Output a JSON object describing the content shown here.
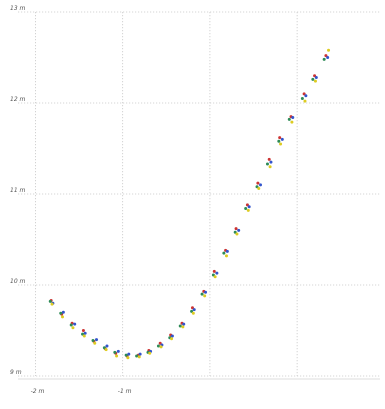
{
  "chart_data": {
    "type": "scatter",
    "title": "",
    "xlabel": "",
    "ylabel": "",
    "x_ticks": [
      {
        "value": -2,
        "label": "-2 m"
      },
      {
        "value": -1,
        "label": "-1 m"
      },
      {
        "value": 0,
        "label": ""
      },
      {
        "value": 1,
        "label": ""
      }
    ],
    "y_ticks": [
      {
        "value": 9.0,
        "label": "9 m"
      },
      {
        "value": 10.0,
        "label": "10 m"
      },
      {
        "value": 11.0,
        "label": "11 m"
      },
      {
        "value": 12.0,
        "label": "12 m"
      },
      {
        "value": 13.0,
        "label": "13 m"
      }
    ],
    "xlim": [
      -2.2,
      1.95
    ],
    "ylim": [
      9.0,
      13.0
    ],
    "grid": true,
    "legend": "none",
    "series": [
      {
        "color": "#cc3333",
        "points": [
          [
            -1.82,
            9.83
          ],
          [
            -1.7,
            9.68
          ],
          [
            -1.58,
            9.58
          ],
          [
            -1.45,
            9.5
          ],
          [
            -1.33,
            9.38
          ],
          [
            -1.2,
            9.3
          ],
          [
            -1.08,
            9.25
          ],
          [
            -0.95,
            9.22
          ],
          [
            -0.82,
            9.23
          ],
          [
            -0.7,
            9.28
          ],
          [
            -0.57,
            9.36
          ],
          [
            -0.45,
            9.45
          ],
          [
            -0.32,
            9.58
          ],
          [
            -0.2,
            9.75
          ],
          [
            -0.07,
            9.93
          ],
          [
            0.05,
            10.15
          ],
          [
            0.18,
            10.38
          ],
          [
            0.3,
            10.62
          ],
          [
            0.43,
            10.88
          ],
          [
            0.55,
            11.12
          ],
          [
            0.68,
            11.38
          ],
          [
            0.8,
            11.62
          ],
          [
            0.93,
            11.85
          ],
          [
            1.08,
            12.1
          ],
          [
            1.2,
            12.3
          ],
          [
            1.33,
            12.52
          ]
        ]
      },
      {
        "color": "#3355cc",
        "points": [
          [
            -1.8,
            9.8
          ],
          [
            -1.68,
            9.7
          ],
          [
            -1.55,
            9.57
          ],
          [
            -1.43,
            9.47
          ],
          [
            -1.3,
            9.4
          ],
          [
            -1.18,
            9.33
          ],
          [
            -1.05,
            9.27
          ],
          [
            -0.93,
            9.24
          ],
          [
            -0.8,
            9.24
          ],
          [
            -0.68,
            9.27
          ],
          [
            -0.55,
            9.34
          ],
          [
            -0.43,
            9.44
          ],
          [
            -0.3,
            9.57
          ],
          [
            -0.18,
            9.73
          ],
          [
            -0.05,
            9.92
          ],
          [
            0.08,
            10.13
          ],
          [
            0.2,
            10.37
          ],
          [
            0.33,
            10.6
          ],
          [
            0.45,
            10.86
          ],
          [
            0.58,
            11.1
          ],
          [
            0.7,
            11.35
          ],
          [
            0.83,
            11.6
          ],
          [
            0.95,
            11.84
          ],
          [
            1.1,
            12.08
          ],
          [
            1.22,
            12.28
          ],
          [
            1.35,
            12.5
          ]
        ]
      },
      {
        "color": "#2e8b57",
        "points": [
          [
            -1.83,
            9.82
          ],
          [
            -1.71,
            9.69
          ],
          [
            -1.59,
            9.56
          ],
          [
            -1.46,
            9.46
          ],
          [
            -1.34,
            9.39
          ],
          [
            -1.21,
            9.31
          ],
          [
            -1.09,
            9.26
          ],
          [
            -0.96,
            9.23
          ],
          [
            -0.84,
            9.22
          ],
          [
            -0.71,
            9.26
          ],
          [
            -0.59,
            9.33
          ],
          [
            -0.46,
            9.42
          ],
          [
            -0.34,
            9.55
          ],
          [
            -0.21,
            9.71
          ],
          [
            -0.09,
            9.9
          ],
          [
            0.04,
            10.11
          ],
          [
            0.16,
            10.35
          ],
          [
            0.29,
            10.58
          ],
          [
            0.41,
            10.84
          ],
          [
            0.54,
            11.08
          ],
          [
            0.66,
            11.33
          ],
          [
            0.79,
            11.58
          ],
          [
            0.91,
            11.82
          ],
          [
            1.06,
            12.05
          ],
          [
            1.18,
            12.26
          ],
          [
            1.31,
            12.48
          ]
        ]
      },
      {
        "color": "#ddcc22",
        "points": [
          [
            -1.81,
            9.79
          ],
          [
            -1.69,
            9.65
          ],
          [
            -1.57,
            9.53
          ],
          [
            -1.44,
            9.44
          ],
          [
            -1.32,
            9.36
          ],
          [
            -1.19,
            9.29
          ],
          [
            -1.07,
            9.22
          ],
          [
            -0.94,
            9.2
          ],
          [
            -0.81,
            9.21
          ],
          [
            -0.69,
            9.25
          ],
          [
            -0.56,
            9.32
          ],
          [
            -0.44,
            9.41
          ],
          [
            -0.31,
            9.54
          ],
          [
            -0.19,
            9.69
          ],
          [
            -0.06,
            9.88
          ],
          [
            0.06,
            10.09
          ],
          [
            0.19,
            10.32
          ],
          [
            0.31,
            10.56
          ],
          [
            0.44,
            10.82
          ],
          [
            0.56,
            11.06
          ],
          [
            0.69,
            11.3
          ],
          [
            0.81,
            11.55
          ],
          [
            0.94,
            11.79
          ],
          [
            1.09,
            12.02
          ],
          [
            1.21,
            12.24
          ],
          [
            1.36,
            12.58
          ]
        ]
      }
    ]
  }
}
